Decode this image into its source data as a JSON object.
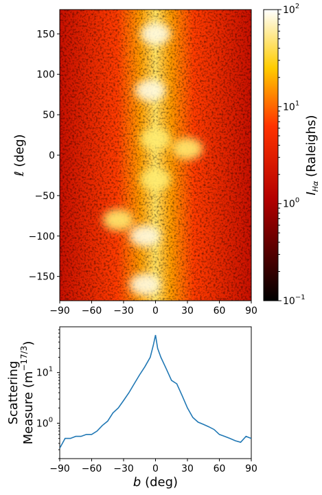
{
  "chart_data": [
    {
      "type": "heatmap",
      "title": "",
      "xlabel": "",
      "ylabel": "ℓ (deg)",
      "xlim": [
        -90,
        90
      ],
      "ylim": [
        -180,
        180
      ],
      "xticks": [
        "−90",
        "−60",
        "−30",
        "0",
        "30",
        "60",
        "90"
      ],
      "yticks": [
        "150",
        "100",
        "50",
        "0",
        "−50",
        "−100",
        "−150"
      ],
      "colormap": "hot",
      "colorbar": {
        "label": "I_Hα (Raleighs)",
        "scale": "log",
        "range": [
          0.1,
          100
        ],
        "ticks": [
          "10",
          "10",
          "10",
          "10"
        ],
        "tick_exponents": [
          "−1",
          "0",
          "1",
          "2"
        ]
      },
      "bright_regions": [
        {
          "b": 0,
          "l": 150,
          "intensity": 40
        },
        {
          "b": -5,
          "l": 80,
          "intensity": 60
        },
        {
          "b": 0,
          "l": 20,
          "intensity": 20
        },
        {
          "b": 30,
          "l": 8,
          "intensity": 30
        },
        {
          "b": 0,
          "l": -30,
          "intensity": 30
        },
        {
          "b": -10,
          "l": -100,
          "intensity": 80
        },
        {
          "b": -10,
          "l": -160,
          "intensity": 50
        },
        {
          "b": -35,
          "l": -80,
          "intensity": 20
        }
      ]
    },
    {
      "type": "line",
      "title": "",
      "xlabel": "b (deg)",
      "ylabel": "Scattering Measure (m−17/3)",
      "ylabel_line1": "Scattering",
      "ylabel_line2": "Measure (m",
      "ylabel_exp": "−17/3",
      "ylabel_close": ")",
      "xlim": [
        -90,
        90
      ],
      "ylim": [
        0.2,
        80
      ],
      "yscale": "log",
      "xticks": [
        "−90",
        "−60",
        "−30",
        "0",
        "30",
        "60",
        "90"
      ],
      "yticks": [
        "10",
        "10"
      ],
      "ytick_exponents": [
        "0",
        "1"
      ],
      "color": "#1f77b4",
      "x": [
        -90,
        -85,
        -80,
        -75,
        -70,
        -65,
        -60,
        -55,
        -50,
        -45,
        -40,
        -35,
        -30,
        -25,
        -20,
        -15,
        -10,
        -5,
        -2,
        0,
        2,
        5,
        10,
        15,
        20,
        25,
        30,
        35,
        40,
        45,
        50,
        55,
        60,
        65,
        70,
        75,
        80,
        85,
        90
      ],
      "y": [
        0.32,
        0.5,
        0.5,
        0.55,
        0.55,
        0.6,
        0.6,
        0.7,
        0.9,
        1.1,
        1.6,
        2.0,
        2.8,
        4.0,
        6.0,
        9.0,
        13,
        20,
        35,
        55,
        30,
        20,
        12,
        7,
        6,
        3.5,
        2.0,
        1.3,
        1.05,
        0.95,
        0.85,
        0.75,
        0.6,
        0.55,
        0.5,
        0.45,
        0.42,
        0.55,
        0.5
      ]
    }
  ]
}
